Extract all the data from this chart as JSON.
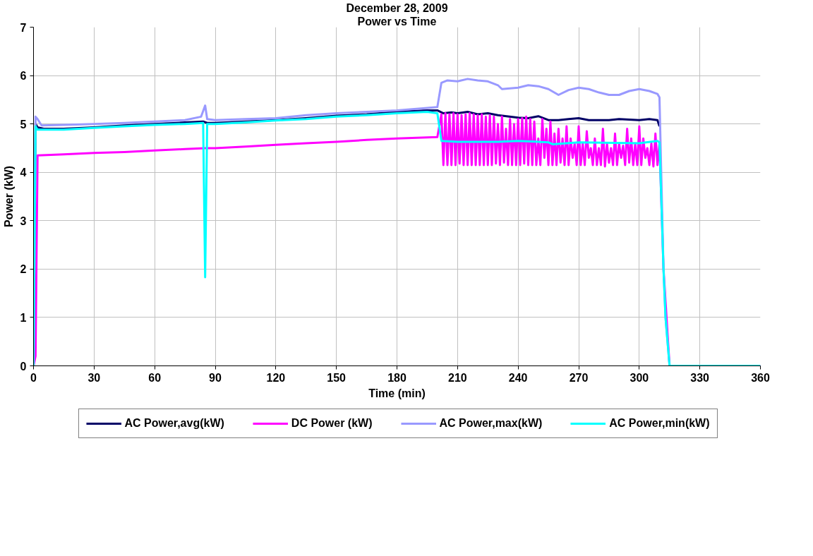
{
  "chart_data": {
    "type": "line",
    "title": "December 28, 2009",
    "subtitle": "Power vs Time",
    "xlabel": "Time (min)",
    "ylabel": "Power (kW)",
    "xlim": [
      0,
      360
    ],
    "xticks": [
      0,
      30,
      60,
      90,
      120,
      150,
      180,
      210,
      240,
      270,
      300,
      330,
      360
    ],
    "ylim": [
      0,
      7
    ],
    "yticks": [
      0,
      1,
      2,
      3,
      4,
      5,
      6,
      7
    ],
    "grid": true,
    "legend": "bottom",
    "marker": "none",
    "line_style": "solid",
    "series": [
      {
        "name": "AC Power,avg(kW)",
        "color": "#000066",
        "x": [
          0,
          1,
          2,
          5,
          15,
          30,
          45,
          60,
          75,
          84,
          86,
          90,
          105,
          120,
          135,
          150,
          165,
          180,
          195,
          200,
          203,
          207,
          210,
          215,
          220,
          225,
          230,
          240,
          245,
          250,
          255,
          260,
          265,
          270,
          275,
          285,
          290,
          300,
          305,
          309,
          310
        ],
        "values": [
          0,
          5.0,
          4.93,
          4.9,
          4.9,
          4.93,
          4.97,
          5.0,
          5.03,
          5.05,
          5.02,
          5.02,
          5.05,
          5.08,
          5.12,
          5.17,
          5.2,
          5.25,
          5.28,
          5.28,
          5.22,
          5.24,
          5.22,
          5.25,
          5.2,
          5.22,
          5.18,
          5.13,
          5.12,
          5.16,
          5.08,
          5.08,
          5.1,
          5.12,
          5.08,
          5.08,
          5.1,
          5.08,
          5.1,
          5.08,
          4.95
        ]
      },
      {
        "name": "DC Power (kW)",
        "color": "#ff00ff",
        "x": [
          0,
          1,
          2,
          15,
          30,
          45,
          60,
          75,
          85,
          90,
          105,
          120,
          135,
          150,
          165,
          180,
          195,
          200,
          202,
          203,
          204,
          205,
          206,
          207,
          208,
          209,
          210,
          211,
          212,
          213,
          214,
          215,
          216,
          217,
          218,
          219,
          220,
          221,
          222,
          223,
          224,
          225,
          226,
          227,
          228,
          229,
          230,
          231,
          232,
          233,
          234,
          235,
          236,
          237,
          238,
          239,
          240,
          241,
          242,
          243,
          244,
          245,
          246,
          247,
          248,
          249,
          250,
          251,
          252,
          253,
          254,
          255,
          256,
          257,
          258,
          259,
          260,
          261,
          262,
          263,
          264,
          265,
          266,
          267,
          268,
          269,
          270,
          271,
          272,
          273,
          274,
          275,
          276,
          277,
          278,
          279,
          280,
          281,
          282,
          283,
          284,
          285,
          286,
          287,
          288,
          289,
          290,
          291,
          292,
          293,
          294,
          295,
          296,
          297,
          298,
          299,
          300,
          301,
          302,
          303,
          304,
          305,
          306,
          307,
          308,
          309,
          310,
          312,
          315,
          360
        ],
        "values": [
          0,
          0.2,
          4.35,
          4.37,
          4.4,
          4.42,
          4.45,
          4.48,
          4.5,
          4.5,
          4.53,
          4.57,
          4.6,
          4.63,
          4.67,
          4.7,
          4.72,
          4.73,
          5.2,
          4.15,
          5.22,
          4.15,
          5.2,
          4.15,
          5.22,
          4.15,
          5.2,
          4.18,
          5.18,
          4.15,
          5.2,
          4.15,
          5.22,
          4.15,
          5.2,
          4.15,
          5.18,
          4.15,
          5.2,
          4.15,
          5.15,
          4.15,
          5.18,
          4.15,
          5.15,
          4.18,
          5.0,
          4.15,
          5.15,
          4.2,
          4.9,
          4.15,
          5.1,
          4.15,
          5.0,
          4.15,
          5.1,
          4.15,
          5.12,
          4.18,
          5.15,
          4.15,
          5.1,
          4.15,
          5.05,
          4.15,
          4.7,
          4.15,
          5.1,
          4.3,
          4.9,
          4.15,
          5.05,
          4.15,
          4.8,
          4.15,
          4.9,
          4.2,
          4.7,
          4.15,
          4.95,
          4.15,
          4.7,
          4.3,
          4.6,
          4.15,
          4.95,
          4.15,
          4.6,
          4.15,
          4.85,
          4.3,
          4.5,
          4.15,
          4.7,
          4.15,
          4.5,
          4.15,
          4.9,
          4.12,
          4.6,
          4.2,
          4.5,
          4.15,
          4.8,
          4.15,
          4.6,
          4.3,
          4.55,
          4.15,
          4.9,
          4.2,
          4.7,
          4.15,
          4.6,
          4.15,
          4.95,
          4.15,
          4.7,
          4.3,
          4.5,
          4.15,
          4.6,
          4.12,
          4.8,
          4.15,
          4.6,
          2.0,
          0,
          0
        ]
      },
      {
        "name": "AC Power,max(kW)",
        "color": "#9999ff",
        "x": [
          0,
          1,
          2,
          4,
          15,
          30,
          45,
          60,
          75,
          83,
          85,
          86,
          90,
          105,
          120,
          135,
          150,
          165,
          180,
          195,
          200,
          202,
          205,
          210,
          215,
          220,
          225,
          230,
          232,
          240,
          245,
          250,
          255,
          260,
          265,
          270,
          275,
          280,
          285,
          290,
          295,
          300,
          305,
          309,
          310,
          312,
          313,
          315,
          360
        ],
        "values": [
          0,
          5.15,
          5.1,
          4.97,
          4.98,
          5.0,
          5.02,
          5.05,
          5.08,
          5.15,
          5.38,
          5.1,
          5.08,
          5.1,
          5.12,
          5.18,
          5.22,
          5.25,
          5.28,
          5.33,
          5.35,
          5.85,
          5.9,
          5.88,
          5.93,
          5.9,
          5.88,
          5.8,
          5.72,
          5.75,
          5.8,
          5.78,
          5.72,
          5.6,
          5.7,
          5.75,
          5.72,
          5.65,
          5.6,
          5.6,
          5.68,
          5.72,
          5.68,
          5.62,
          5.55,
          2.0,
          1.0,
          0,
          0
        ]
      },
      {
        "name": "AC Power,min(kW)",
        "color": "#00ffff",
        "x": [
          0,
          1,
          2,
          15,
          30,
          45,
          60,
          75,
          84,
          85,
          86,
          90,
          105,
          120,
          135,
          150,
          165,
          180,
          195,
          200,
          202,
          210,
          230,
          240,
          255,
          257,
          270,
          300,
          309,
          310,
          312,
          313,
          315,
          360
        ],
        "values": [
          0,
          4.95,
          4.88,
          4.88,
          4.92,
          4.95,
          4.98,
          5.0,
          5.02,
          1.83,
          5.0,
          5.0,
          5.03,
          5.07,
          5.1,
          5.15,
          5.18,
          5.22,
          5.25,
          5.22,
          4.65,
          4.63,
          4.63,
          4.65,
          4.62,
          4.58,
          4.62,
          4.6,
          4.65,
          4.62,
          2.0,
          1.0,
          0,
          0
        ]
      }
    ]
  }
}
